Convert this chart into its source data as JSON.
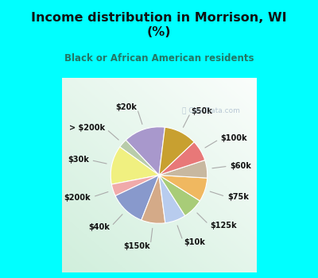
{
  "title": "Income distribution in Morrison, WI\n(%)",
  "subtitle": "Black or African American residents",
  "watermark": "ⓘ City-Data.com",
  "labels": [
    "$20k",
    "> $200k",
    "$30k",
    "$200k",
    "$40k",
    "$150k",
    "$10k",
    "$125k",
    "$75k",
    "$60k",
    "$100k",
    "$50k"
  ],
  "sizes": [
    14,
    3,
    13,
    4,
    12,
    8,
    7,
    7,
    8,
    6,
    7,
    11
  ],
  "colors": [
    "#a898cc",
    "#b8ccaa",
    "#f0f080",
    "#f0aaaa",
    "#8899cc",
    "#d4aa88",
    "#b8ccee",
    "#a8cc78",
    "#f0b860",
    "#c8b8a0",
    "#e87878",
    "#c8a030"
  ],
  "bg_color_top": "#00ffff",
  "title_color": "#111111",
  "subtitle_color": "#227766",
  "label_color": "#111111",
  "startangle": 83
}
